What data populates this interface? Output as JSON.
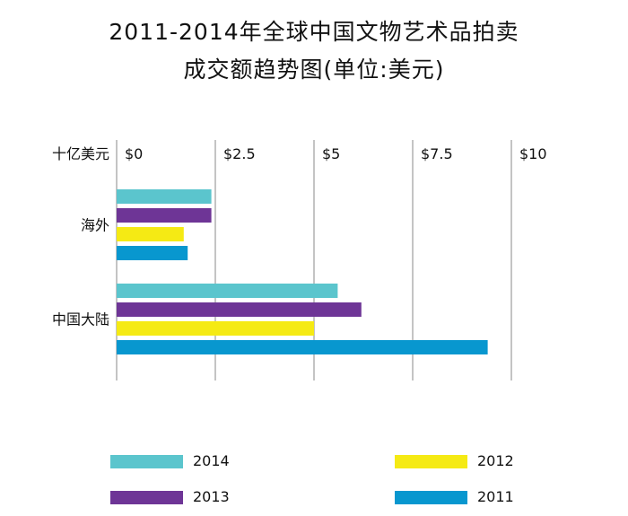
{
  "title_line1": "2011-2014年全球中国文物艺术品拍卖",
  "title_line2": "成交额趋势图(单位:美元)",
  "colors": {
    "2014": "#5bc5cd",
    "2013": "#6e3596",
    "2012": "#f5ea14",
    "2011": "#0897cf",
    "grid": "#888888",
    "text": "#111111"
  },
  "chart_data": {
    "type": "bar",
    "orientation": "horizontal",
    "unit_label": "十亿美元",
    "categories": [
      "海外",
      "中国大陆"
    ],
    "series": [
      {
        "name": "2014",
        "values": [
          2.4,
          5.6
        ]
      },
      {
        "name": "2013",
        "values": [
          2.4,
          6.2
        ]
      },
      {
        "name": "2012",
        "values": [
          1.7,
          5.0
        ]
      },
      {
        "name": "2011",
        "values": [
          1.8,
          9.4
        ]
      }
    ],
    "xlim": [
      0,
      10
    ],
    "ticks": [
      0,
      2.5,
      5,
      7.5,
      10
    ],
    "tick_labels": [
      "$0",
      "$2.5",
      "$5",
      "$7.5",
      "$10"
    ],
    "legend_position": "bottom",
    "grid": true
  },
  "legend": [
    {
      "label": "2014",
      "color": "#5bc5cd"
    },
    {
      "label": "2012",
      "color": "#f5ea14"
    },
    {
      "label": "2013",
      "color": "#6e3596"
    },
    {
      "label": "2011",
      "color": "#0897cf"
    }
  ]
}
